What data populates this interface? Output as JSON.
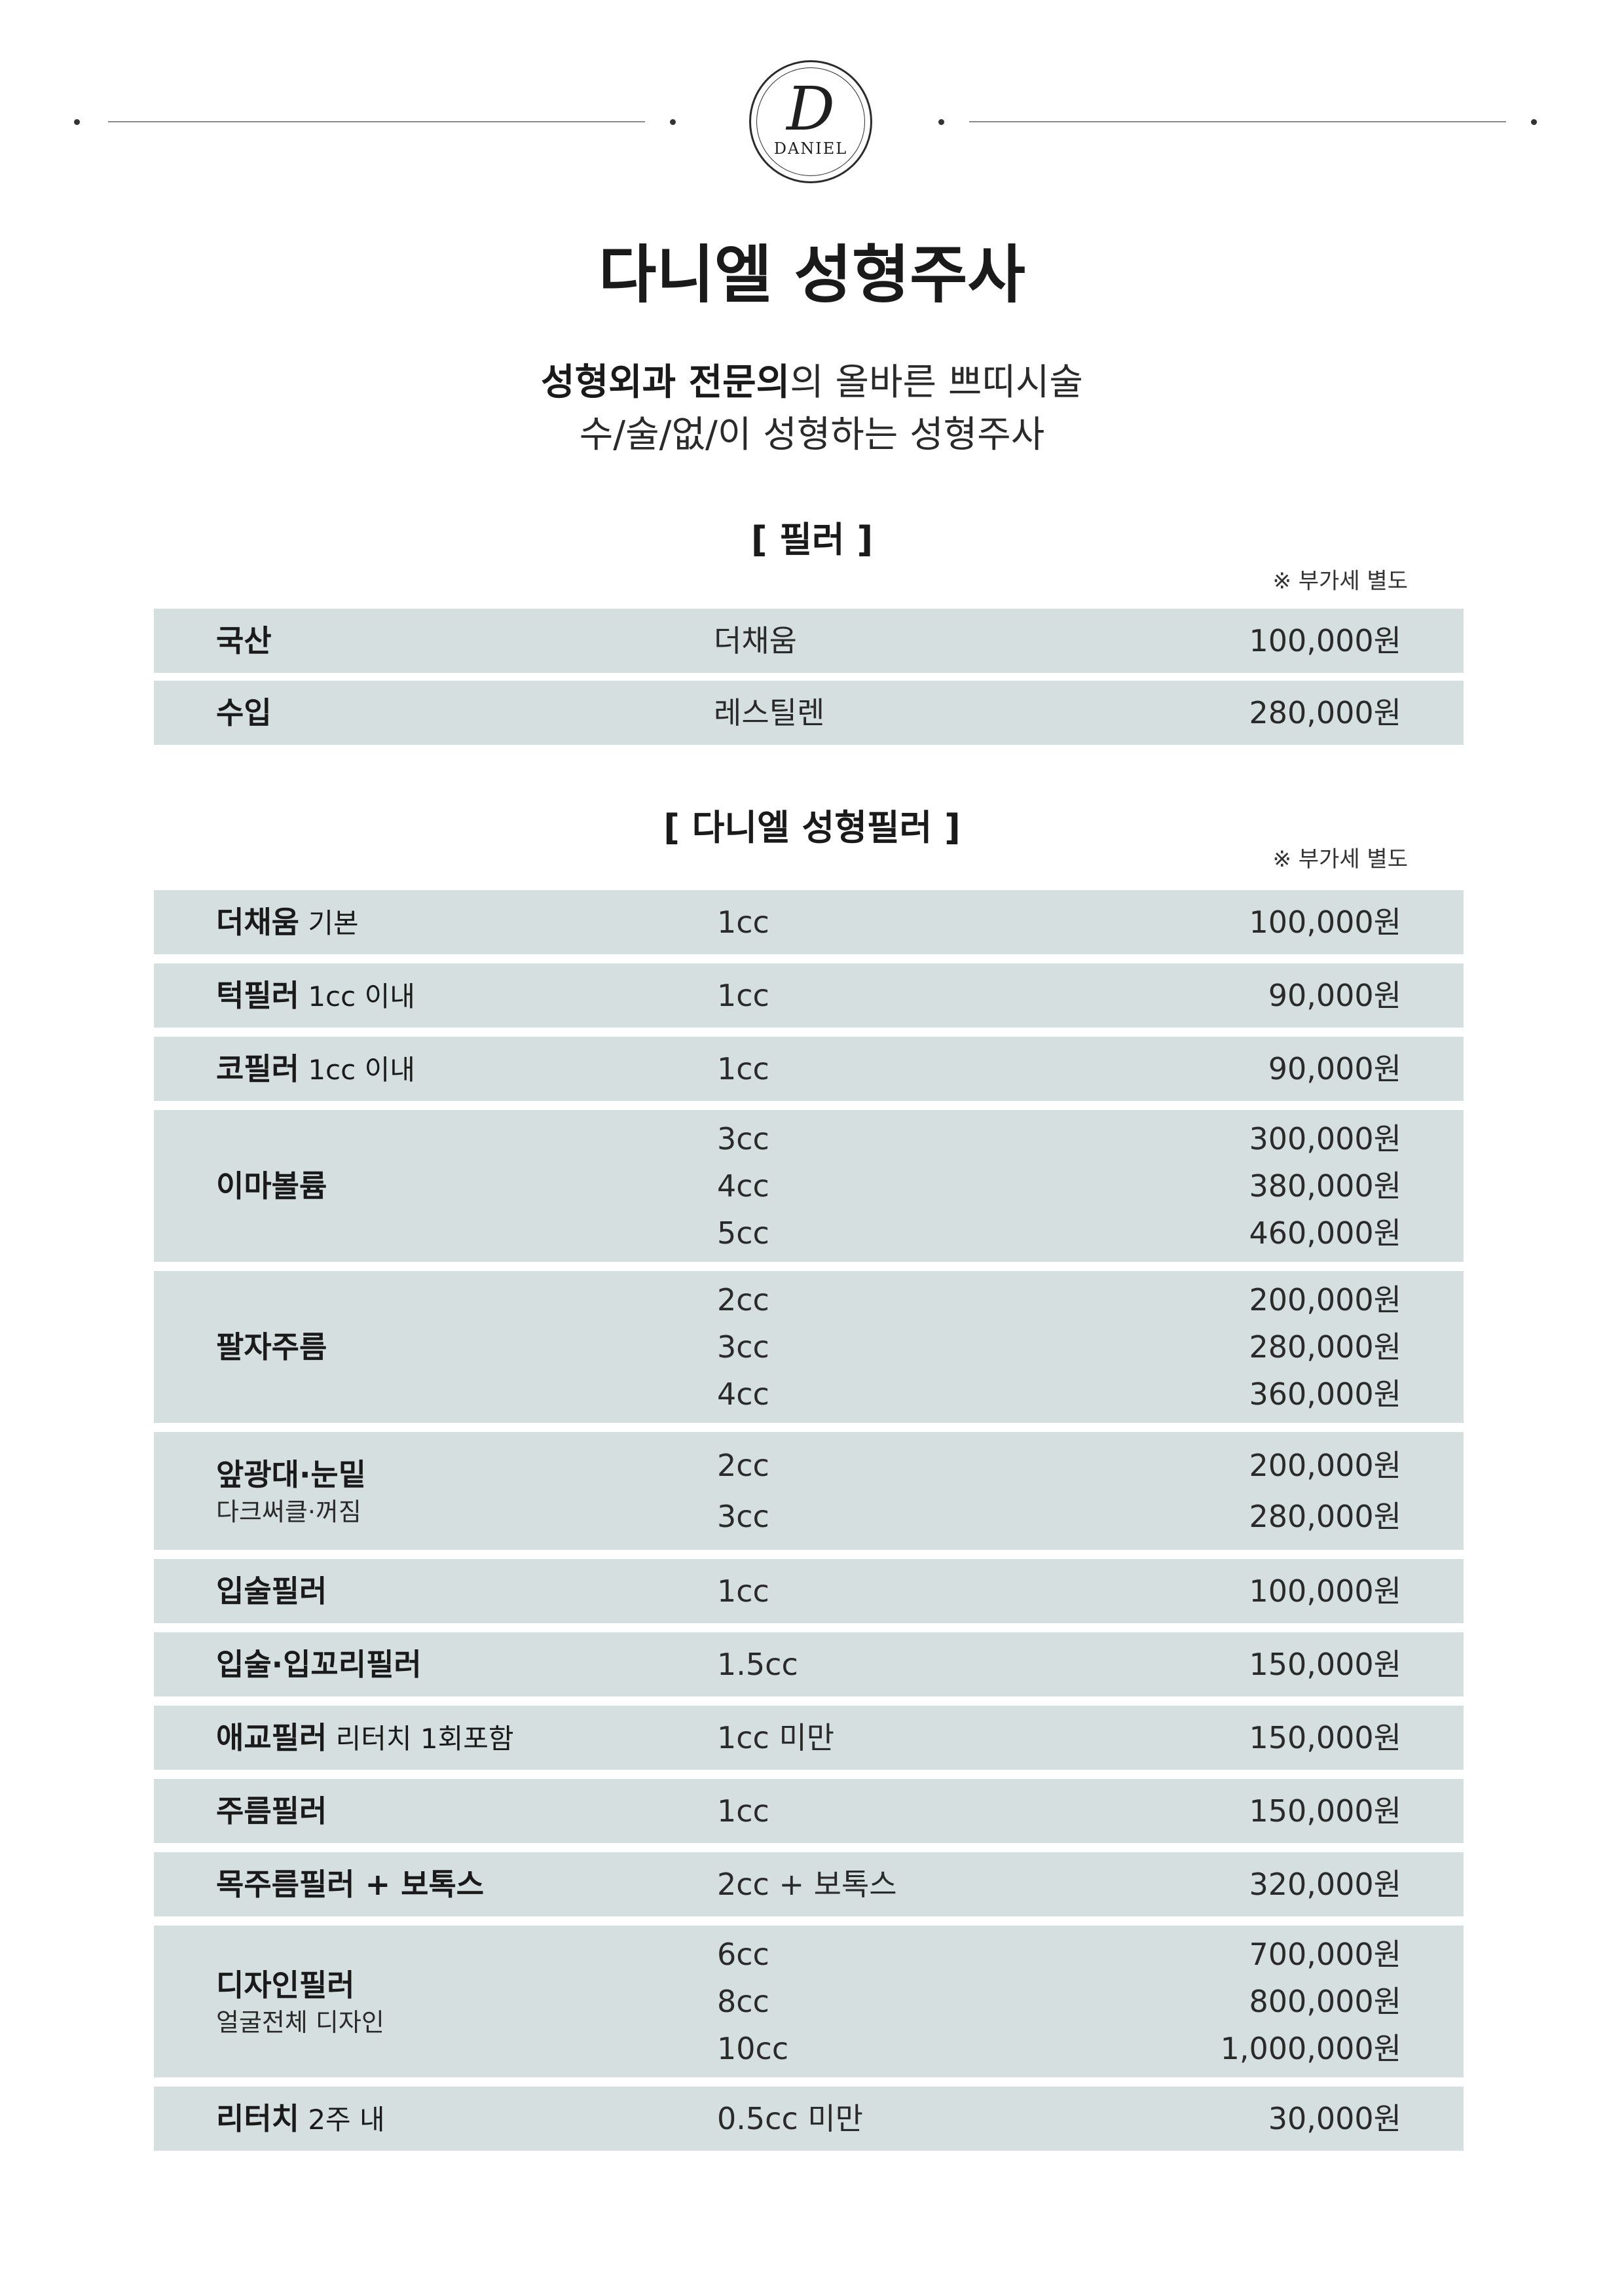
{
  "logo": {
    "monogram": "D",
    "text": "DANIEL"
  },
  "title": "다니엘 성형주사",
  "subtitle": {
    "line1_bold": "성형외과 전문의",
    "line1_rest": "의 올바른 쁘띠시술",
    "line2": "수/술/없/이 성형하는 성형주사"
  },
  "sections": {
    "filler": {
      "title": "[ 필러 ]",
      "vat_note": "※ 부가세 별도",
      "rows": [
        {
          "name": "국산",
          "size": "더채움",
          "price": "100,000원"
        },
        {
          "name": "수입",
          "size": "레스틸렌",
          "price": "280,000원"
        }
      ]
    },
    "daniel": {
      "title": "[ 다니엘 성형필러 ]",
      "vat_note": "※ 부가세 별도",
      "rows": [
        {
          "name": "더채움",
          "note": " 기본",
          "sizes": [
            "1cc"
          ],
          "prices": [
            "100,000원"
          ]
        },
        {
          "name": "턱필러",
          "note": " 1cc 이내",
          "sizes": [
            "1cc"
          ],
          "prices": [
            "90,000원"
          ]
        },
        {
          "name": "코필러",
          "note": " 1cc 이내",
          "sizes": [
            "1cc"
          ],
          "prices": [
            "90,000원"
          ]
        },
        {
          "name": "이마볼륨",
          "note": "",
          "sizes": [
            "3cc",
            "4cc",
            "5cc"
          ],
          "prices": [
            "300,000원",
            "380,000원",
            "460,000원"
          ]
        },
        {
          "name": "팔자주름",
          "note": "",
          "sizes": [
            "2cc",
            "3cc",
            "4cc"
          ],
          "prices": [
            "200,000원",
            "280,000원",
            "360,000원"
          ]
        },
        {
          "name": "앞광대·눈밑",
          "note": "",
          "name2": "다크써클·꺼짐",
          "sizes": [
            "2cc",
            "3cc"
          ],
          "prices": [
            "200,000원",
            "280,000원"
          ]
        },
        {
          "name": "입술필러",
          "note": "",
          "sizes": [
            "1cc"
          ],
          "prices": [
            "100,000원"
          ]
        },
        {
          "name": "입술·입꼬리필러",
          "note": "",
          "sizes": [
            "1.5cc"
          ],
          "prices": [
            "150,000원"
          ]
        },
        {
          "name": "애교필러",
          "note": " 리터치 1회포함",
          "sizes": [
            "1cc 미만"
          ],
          "prices": [
            "150,000원"
          ]
        },
        {
          "name": "주름필러",
          "note": "",
          "sizes": [
            "1cc"
          ],
          "prices": [
            "150,000원"
          ]
        },
        {
          "name": "목주름필러 + 보톡스",
          "note": "",
          "sizes": [
            "2cc + 보톡스"
          ],
          "prices": [
            "320,000원"
          ]
        },
        {
          "name": "디자인필러",
          "note": "",
          "name2": "얼굴전체 디자인",
          "sizes": [
            "6cc",
            "8cc",
            "10cc"
          ],
          "prices": [
            "700,000원",
            "800,000원",
            "1,000,000원"
          ]
        },
        {
          "name": "리터치",
          "note": " 2주 내",
          "sizes": [
            "0.5cc 미만"
          ],
          "prices": [
            "30,000원"
          ]
        }
      ]
    }
  }
}
